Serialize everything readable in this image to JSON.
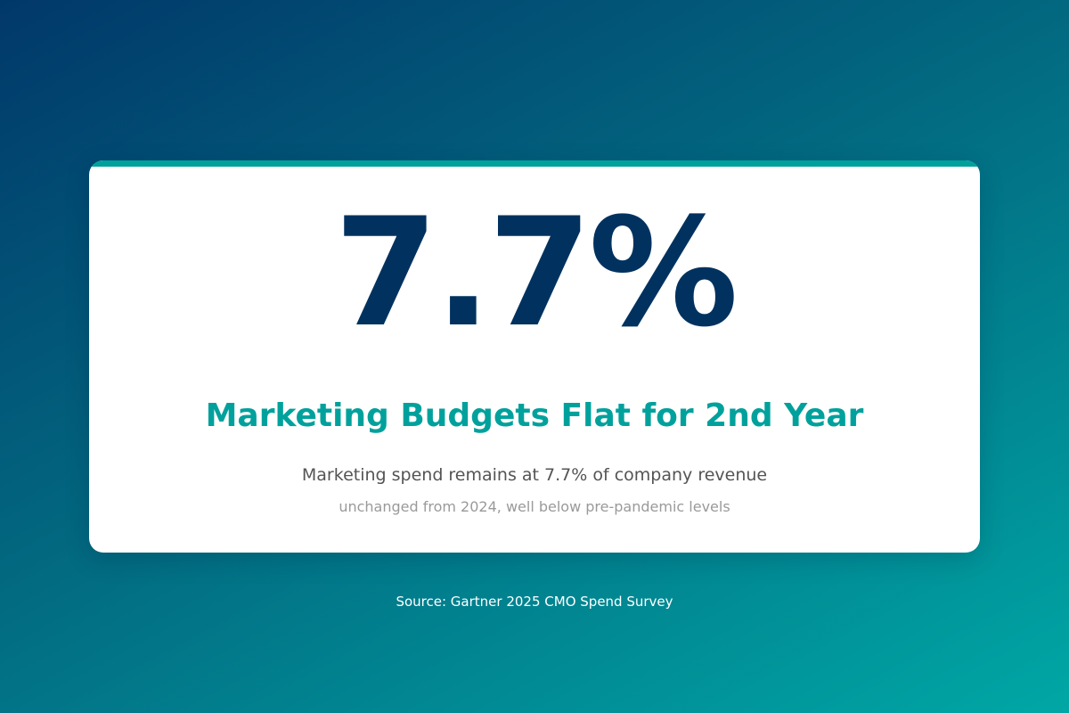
{
  "stat": {
    "value": "7.7%"
  },
  "headline": "Marketing Budgets Flat for 2nd Year",
  "subtitle": "Marketing spend remains at 7.7% of company revenue",
  "note": "unchanged from 2024, well below pre-pandemic levels",
  "source": "Source: Gartner 2025 CMO Spend Survey",
  "colors": {
    "background_start": "#01386a",
    "background_end": "#00a7a5",
    "accent": "#00a19c",
    "stat": "#01325f",
    "card": "#ffffff"
  }
}
